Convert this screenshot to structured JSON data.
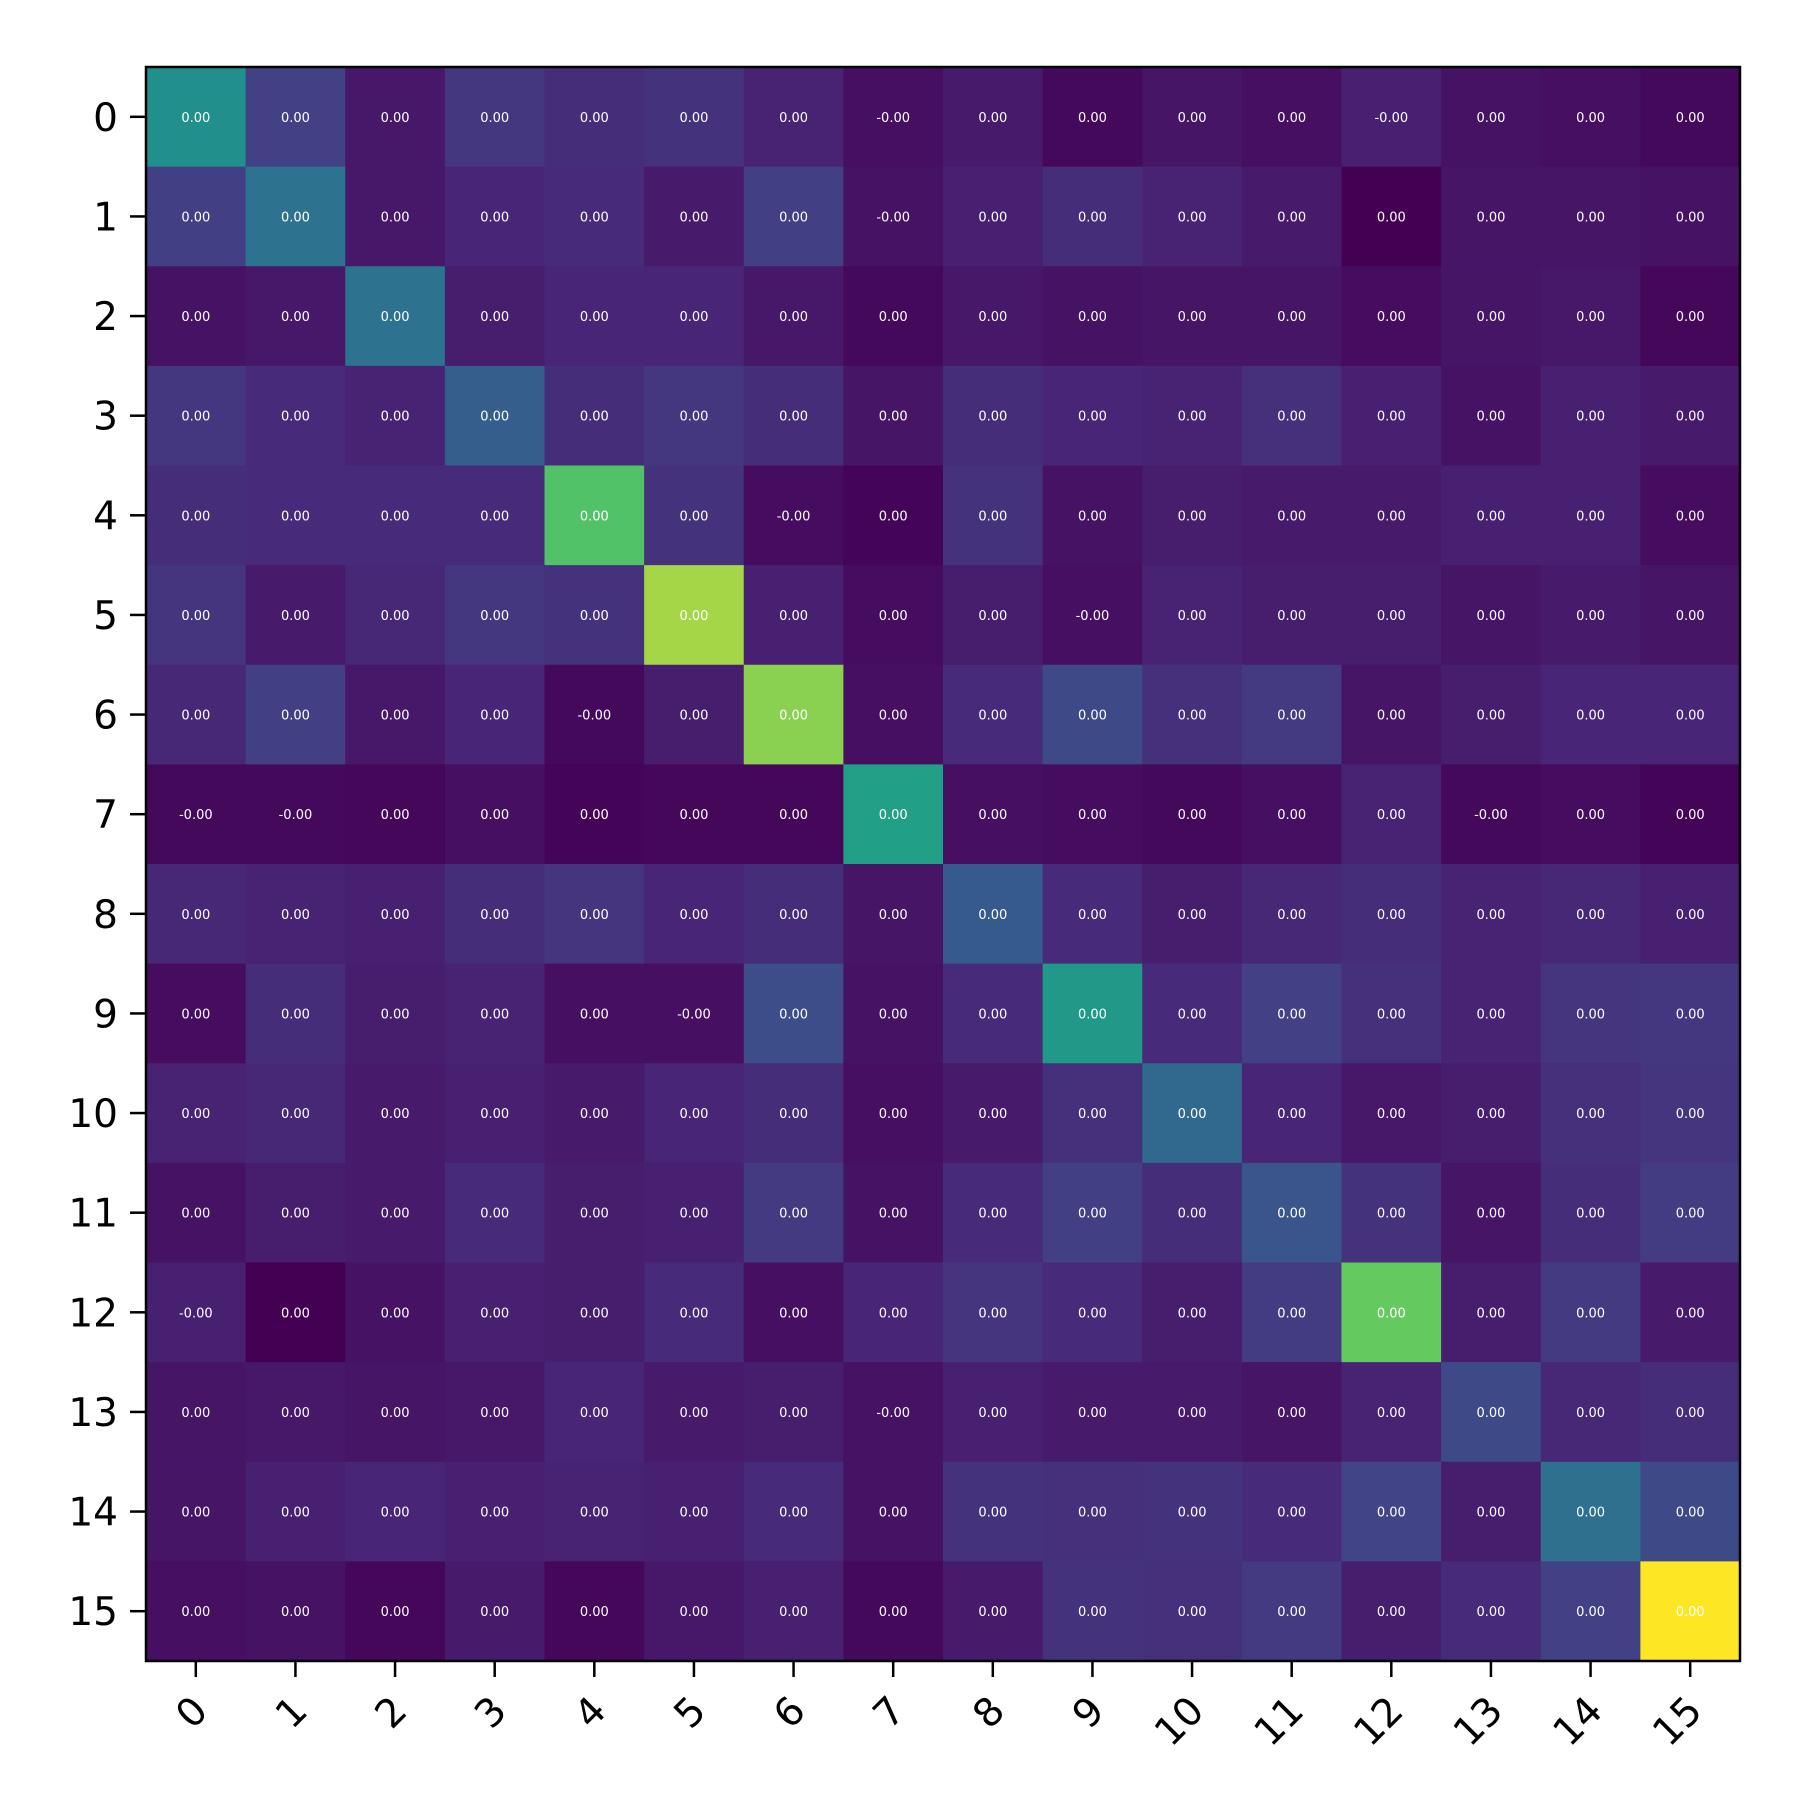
{
  "chart_data": {
    "type": "heatmap",
    "title": "",
    "xlabel": "",
    "ylabel": "",
    "x_categories": [
      "0",
      "1",
      "2",
      "3",
      "4",
      "5",
      "6",
      "7",
      "8",
      "9",
      "10",
      "11",
      "12",
      "13",
      "14",
      "15"
    ],
    "y_categories": [
      "0",
      "1",
      "2",
      "3",
      "4",
      "5",
      "6",
      "7",
      "8",
      "9",
      "10",
      "11",
      "12",
      "13",
      "14",
      "15"
    ],
    "colormap": "viridis",
    "value_range": [
      0,
      1
    ],
    "grid": false,
    "legend": "none",
    "x_tick_rotation_deg": 45,
    "values": [
      [
        0.62,
        0.24,
        0.08,
        0.2,
        0.16,
        0.18,
        0.12,
        0.05,
        0.09,
        0.03,
        0.07,
        0.05,
        0.11,
        0.06,
        0.05,
        0.03
      ],
      [
        0.23,
        0.47,
        0.08,
        0.13,
        0.15,
        0.09,
        0.23,
        0.06,
        0.11,
        0.16,
        0.12,
        0.09,
        0.0,
        0.07,
        0.07,
        0.06
      ],
      [
        0.06,
        0.08,
        0.47,
        0.1,
        0.13,
        0.13,
        0.08,
        0.03,
        0.08,
        0.06,
        0.07,
        0.07,
        0.04,
        0.07,
        0.08,
        0.02
      ],
      [
        0.2,
        0.15,
        0.12,
        0.37,
        0.16,
        0.2,
        0.16,
        0.07,
        0.16,
        0.13,
        0.12,
        0.17,
        0.11,
        0.06,
        0.11,
        0.09
      ],
      [
        0.16,
        0.15,
        0.15,
        0.15,
        0.85,
        0.18,
        0.04,
        0.01,
        0.18,
        0.06,
        0.1,
        0.09,
        0.09,
        0.11,
        0.11,
        0.04
      ],
      [
        0.19,
        0.09,
        0.14,
        0.2,
        0.18,
        0.93,
        0.11,
        0.04,
        0.1,
        0.05,
        0.12,
        0.1,
        0.1,
        0.07,
        0.09,
        0.07
      ],
      [
        0.14,
        0.23,
        0.08,
        0.13,
        0.03,
        0.1,
        0.91,
        0.05,
        0.15,
        0.28,
        0.17,
        0.21,
        0.07,
        0.1,
        0.13,
        0.13
      ],
      [
        0.03,
        0.03,
        0.02,
        0.05,
        0.01,
        0.02,
        0.02,
        0.7,
        0.05,
        0.04,
        0.03,
        0.05,
        0.12,
        0.03,
        0.04,
        0.01
      ],
      [
        0.14,
        0.12,
        0.11,
        0.16,
        0.19,
        0.13,
        0.16,
        0.07,
        0.35,
        0.15,
        0.1,
        0.14,
        0.16,
        0.12,
        0.14,
        0.11
      ],
      [
        0.04,
        0.16,
        0.1,
        0.12,
        0.05,
        0.05,
        0.29,
        0.06,
        0.15,
        0.67,
        0.15,
        0.24,
        0.17,
        0.12,
        0.19,
        0.2
      ],
      [
        0.12,
        0.14,
        0.09,
        0.11,
        0.09,
        0.13,
        0.16,
        0.05,
        0.09,
        0.17,
        0.42,
        0.13,
        0.08,
        0.1,
        0.17,
        0.19
      ],
      [
        0.06,
        0.1,
        0.09,
        0.15,
        0.1,
        0.11,
        0.21,
        0.06,
        0.15,
        0.23,
        0.16,
        0.33,
        0.18,
        0.07,
        0.16,
        0.22
      ],
      [
        0.11,
        0.0,
        0.06,
        0.11,
        0.1,
        0.15,
        0.05,
        0.13,
        0.19,
        0.15,
        0.1,
        0.22,
        0.88,
        0.1,
        0.21,
        0.09
      ],
      [
        0.07,
        0.08,
        0.07,
        0.08,
        0.13,
        0.09,
        0.1,
        0.06,
        0.11,
        0.09,
        0.09,
        0.07,
        0.12,
        0.28,
        0.14,
        0.16
      ],
      [
        0.07,
        0.11,
        0.13,
        0.11,
        0.12,
        0.11,
        0.15,
        0.06,
        0.18,
        0.17,
        0.18,
        0.15,
        0.25,
        0.1,
        0.46,
        0.28
      ],
      [
        0.05,
        0.06,
        0.02,
        0.09,
        0.02,
        0.08,
        0.11,
        0.03,
        0.09,
        0.18,
        0.17,
        0.21,
        0.1,
        0.15,
        0.24,
        1.0
      ]
    ],
    "cell_labels": [
      [
        "0.00",
        "0.00",
        "0.00",
        "0.00",
        "0.00",
        "0.00",
        "0.00",
        "-0.00",
        "0.00",
        "0.00",
        "0.00",
        "0.00",
        "-0.00",
        "0.00",
        "0.00",
        "0.00"
      ],
      [
        "0.00",
        "0.00",
        "0.00",
        "0.00",
        "0.00",
        "0.00",
        "0.00",
        "-0.00",
        "0.00",
        "0.00",
        "0.00",
        "0.00",
        "0.00",
        "0.00",
        "0.00",
        "0.00"
      ],
      [
        "0.00",
        "0.00",
        "0.00",
        "0.00",
        "0.00",
        "0.00",
        "0.00",
        "0.00",
        "0.00",
        "0.00",
        "0.00",
        "0.00",
        "0.00",
        "0.00",
        "0.00",
        "0.00"
      ],
      [
        "0.00",
        "0.00",
        "0.00",
        "0.00",
        "0.00",
        "0.00",
        "0.00",
        "0.00",
        "0.00",
        "0.00",
        "0.00",
        "0.00",
        "0.00",
        "0.00",
        "0.00",
        "0.00"
      ],
      [
        "0.00",
        "0.00",
        "0.00",
        "0.00",
        "0.00",
        "0.00",
        "-0.00",
        "0.00",
        "0.00",
        "0.00",
        "0.00",
        "0.00",
        "0.00",
        "0.00",
        "0.00",
        "0.00"
      ],
      [
        "0.00",
        "0.00",
        "0.00",
        "0.00",
        "0.00",
        "0.00",
        "0.00",
        "0.00",
        "0.00",
        "-0.00",
        "0.00",
        "0.00",
        "0.00",
        "0.00",
        "0.00",
        "0.00"
      ],
      [
        "0.00",
        "0.00",
        "0.00",
        "0.00",
        "-0.00",
        "0.00",
        "0.00",
        "0.00",
        "0.00",
        "0.00",
        "0.00",
        "0.00",
        "0.00",
        "0.00",
        "0.00",
        "0.00"
      ],
      [
        "-0.00",
        "-0.00",
        "0.00",
        "0.00",
        "0.00",
        "0.00",
        "0.00",
        "0.00",
        "0.00",
        "0.00",
        "0.00",
        "0.00",
        "0.00",
        "-0.00",
        "0.00",
        "0.00"
      ],
      [
        "0.00",
        "0.00",
        "0.00",
        "0.00",
        "0.00",
        "0.00",
        "0.00",
        "0.00",
        "0.00",
        "0.00",
        "0.00",
        "0.00",
        "0.00",
        "0.00",
        "0.00",
        "0.00"
      ],
      [
        "0.00",
        "0.00",
        "0.00",
        "0.00",
        "0.00",
        "-0.00",
        "0.00",
        "0.00",
        "0.00",
        "0.00",
        "0.00",
        "0.00",
        "0.00",
        "0.00",
        "0.00",
        "0.00"
      ],
      [
        "0.00",
        "0.00",
        "0.00",
        "0.00",
        "0.00",
        "0.00",
        "0.00",
        "0.00",
        "0.00",
        "0.00",
        "0.00",
        "0.00",
        "0.00",
        "0.00",
        "0.00",
        "0.00"
      ],
      [
        "0.00",
        "0.00",
        "0.00",
        "0.00",
        "0.00",
        "0.00",
        "0.00",
        "0.00",
        "0.00",
        "0.00",
        "0.00",
        "0.00",
        "0.00",
        "0.00",
        "0.00",
        "0.00"
      ],
      [
        "-0.00",
        "0.00",
        "0.00",
        "0.00",
        "0.00",
        "0.00",
        "0.00",
        "0.00",
        "0.00",
        "0.00",
        "0.00",
        "0.00",
        "0.00",
        "0.00",
        "0.00",
        "0.00"
      ],
      [
        "0.00",
        "0.00",
        "0.00",
        "0.00",
        "0.00",
        "0.00",
        "0.00",
        "-0.00",
        "0.00",
        "0.00",
        "0.00",
        "0.00",
        "0.00",
        "0.00",
        "0.00",
        "0.00"
      ],
      [
        "0.00",
        "0.00",
        "0.00",
        "0.00",
        "0.00",
        "0.00",
        "0.00",
        "0.00",
        "0.00",
        "0.00",
        "0.00",
        "0.00",
        "0.00",
        "0.00",
        "0.00",
        "0.00"
      ],
      [
        "0.00",
        "0.00",
        "0.00",
        "0.00",
        "0.00",
        "0.00",
        "0.00",
        "0.00",
        "0.00",
        "0.00",
        "0.00",
        "0.00",
        "0.00",
        "0.00",
        "0.00",
        "0.00"
      ]
    ]
  }
}
